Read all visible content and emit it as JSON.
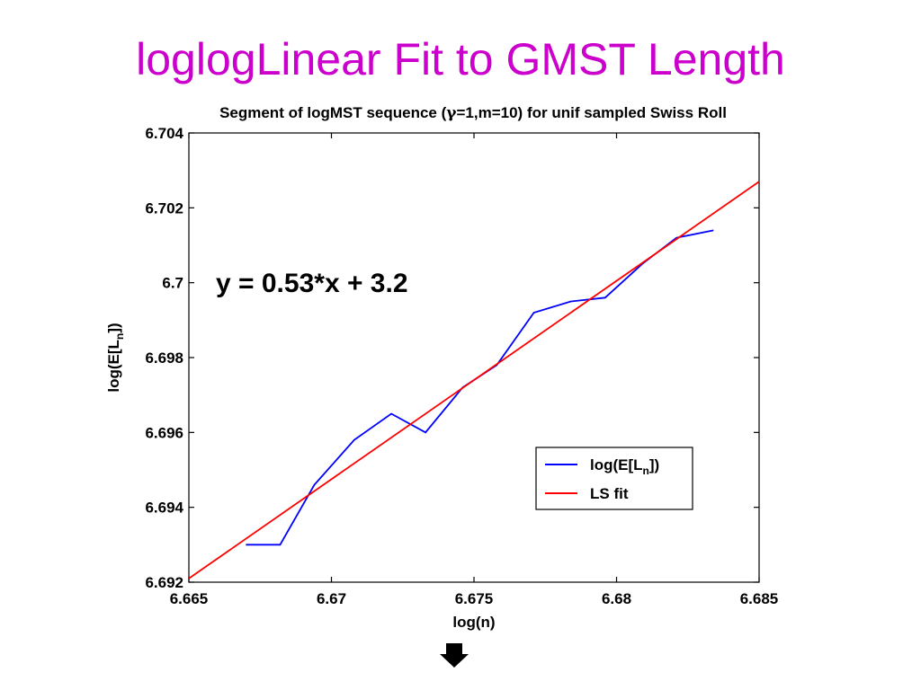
{
  "slide": {
    "title": "loglogLinear Fit to GMST Length",
    "title_color": "#cc00cc"
  },
  "chart_data": {
    "type": "line",
    "title_prefix": "Segment of logMST sequence (",
    "title_gamma": "γ",
    "title_suffix": "=1,m=10) for unif sampled Swiss Roll",
    "xlabel": "log(n)",
    "ylabel_prefix": "log(E[L",
    "ylabel_sub": "n",
    "ylabel_suffix": "])",
    "xlim": [
      6.665,
      6.685
    ],
    "ylim": [
      6.692,
      6.704
    ],
    "x_ticks": [
      6.665,
      6.67,
      6.675,
      6.68,
      6.685
    ],
    "x_tick_labels": [
      "6.665",
      "6.67",
      "6.675",
      "6.68",
      "6.685"
    ],
    "y_ticks": [
      6.692,
      6.694,
      6.696,
      6.698,
      6.7,
      6.702,
      6.704
    ],
    "y_tick_labels": [
      "6.692",
      "6.694",
      "6.696",
      "6.698",
      "6.7",
      "6.702",
      "6.704"
    ],
    "annotation": "y = 0.53*x + 3.2",
    "legend_position": "lower-right",
    "grid": false,
    "series": [
      {
        "name_prefix": "log(E[L",
        "name_sub": "n",
        "name_suffix": "])",
        "color": "#0000ff",
        "x": [
          6.667,
          6.6682,
          6.6694,
          6.6708,
          6.6721,
          6.6733,
          6.6746,
          6.6758,
          6.6771,
          6.6784,
          6.6796,
          6.6809,
          6.6821,
          6.6834
        ],
        "y": [
          6.693,
          6.693,
          6.6946,
          6.6958,
          6.6965,
          6.696,
          6.6972,
          6.6978,
          6.6992,
          6.6995,
          6.6996,
          6.7005,
          6.7012,
          6.7014
        ]
      },
      {
        "name": "LS fit",
        "color": "#ff0000",
        "x": [
          6.665,
          6.685
        ],
        "y": [
          6.6921,
          6.7027
        ]
      }
    ]
  }
}
